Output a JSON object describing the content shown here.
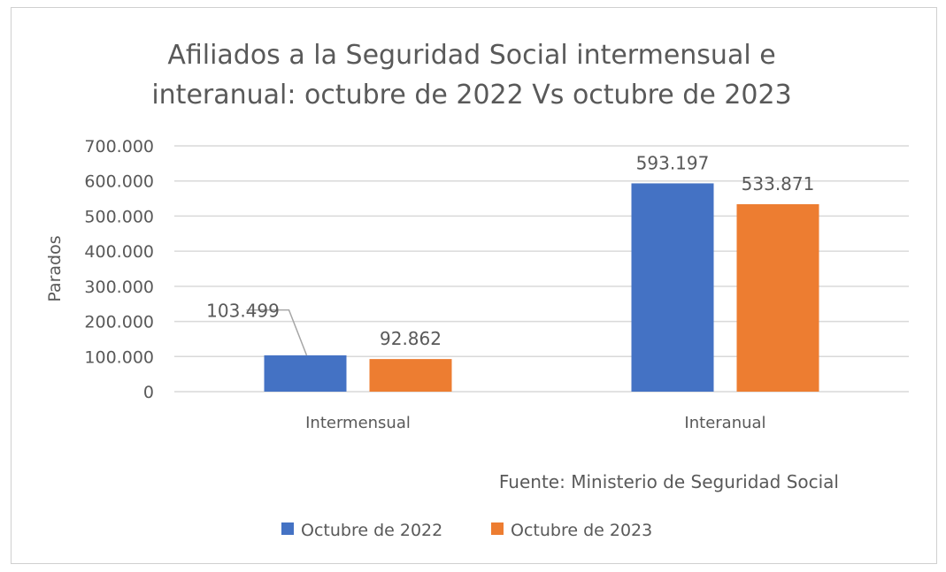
{
  "chart_data": {
    "type": "bar",
    "title": "Afiliados a la Seguridad Social intermensual e interanual: octubre de 2022 Vs octubre de 2023",
    "title_lines": [
      "Afiliados a la Seguridad Social intermensual e",
      "interanual: octubre de 2022 Vs octubre de 2023"
    ],
    "xlabel": "",
    "ylabel": "Parados",
    "ylim": [
      0,
      700000
    ],
    "yticks": [
      0,
      100000,
      200000,
      300000,
      400000,
      500000,
      600000,
      700000
    ],
    "ytick_labels": [
      "0",
      "100.000",
      "200.000",
      "300.000",
      "400.000",
      "500.000",
      "600.000",
      "700.000"
    ],
    "grid": true,
    "categories": [
      "Intermensual",
      "Interanual"
    ],
    "series": [
      {
        "name": "Octubre de 2022",
        "color": "#4472C4",
        "values": [
          103499,
          593197
        ],
        "labels": [
          "103.499",
          "593.197"
        ]
      },
      {
        "name": "Octubre de 2023",
        "color": "#ED7D31",
        "values": [
          92862,
          533871
        ],
        "labels": [
          "92.862",
          "533.871"
        ]
      }
    ],
    "annotation": "Fuente: Ministerio de Seguridad Social",
    "legend_position": "bottom"
  }
}
